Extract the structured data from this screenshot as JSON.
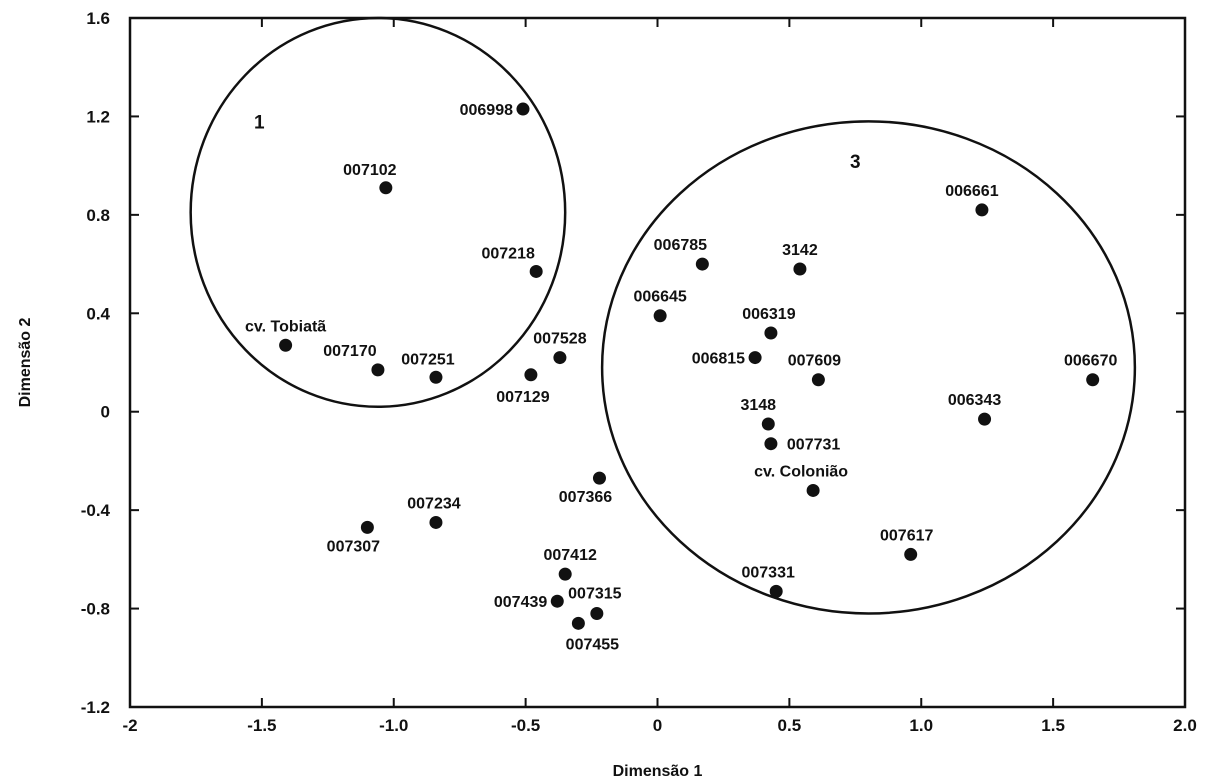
{
  "chart_data": {
    "type": "scatter",
    "xlabel": "Dimensão 1",
    "ylabel": "Dimensão 2",
    "xlim": [
      -2,
      2
    ],
    "ylim": [
      -1.2,
      1.6
    ],
    "x_ticks": [
      "-2",
      "-1.5",
      "-1.0",
      "-0.5",
      "0",
      "0.5",
      "1.0",
      "1.5",
      "2.0"
    ],
    "x_tick_values": [
      -2,
      -1.5,
      -1,
      -0.5,
      0,
      0.5,
      1,
      1.5,
      2
    ],
    "y_ticks": [
      "-1.2",
      "-0.8",
      "-0.4",
      "0",
      "0.4",
      "0.8",
      "1.2",
      "1.6"
    ],
    "y_tick_values": [
      -1.2,
      -0.8,
      -0.4,
      0,
      0.4,
      0.8,
      1.2,
      1.6
    ],
    "grid": false,
    "points": [
      {
        "label": "006998",
        "x": -0.51,
        "y": 1.23
      },
      {
        "label": "007102",
        "x": -1.03,
        "y": 0.91
      },
      {
        "label": "007218",
        "x": -0.46,
        "y": 0.57
      },
      {
        "label": "cv. Tobiatã",
        "x": -1.41,
        "y": 0.27
      },
      {
        "label": "007170",
        "x": -1.06,
        "y": 0.17
      },
      {
        "label": "007251",
        "x": -0.84,
        "y": 0.14
      },
      {
        "label": "007528",
        "x": -0.37,
        "y": 0.22
      },
      {
        "label": "007129",
        "x": -0.48,
        "y": 0.15
      },
      {
        "label": "006661",
        "x": 1.23,
        "y": 0.82
      },
      {
        "label": "006785",
        "x": 0.17,
        "y": 0.6
      },
      {
        "label": "3142",
        "x": 0.54,
        "y": 0.58
      },
      {
        "label": "006645",
        "x": 0.01,
        "y": 0.39
      },
      {
        "label": "006319",
        "x": 0.43,
        "y": 0.32
      },
      {
        "label": "006815",
        "x": 0.37,
        "y": 0.22
      },
      {
        "label": "007609",
        "x": 0.61,
        "y": 0.13
      },
      {
        "label": "006670",
        "x": 1.65,
        "y": 0.13
      },
      {
        "label": "3148",
        "x": 0.42,
        "y": -0.05
      },
      {
        "label": "006343",
        "x": 1.24,
        "y": -0.03
      },
      {
        "label": "007731",
        "x": 0.43,
        "y": -0.13
      },
      {
        "label": "cv. Colonião",
        "x": 0.59,
        "y": -0.32
      },
      {
        "label": "007366",
        "x": -0.22,
        "y": -0.27
      },
      {
        "label": "007234",
        "x": -0.84,
        "y": -0.45
      },
      {
        "label": "007307",
        "x": -1.1,
        "y": -0.47
      },
      {
        "label": "007412",
        "x": -0.35,
        "y": -0.66
      },
      {
        "label": "007617",
        "x": 0.96,
        "y": -0.58
      },
      {
        "label": "007331",
        "x": 0.45,
        "y": -0.73
      },
      {
        "label": "007439",
        "x": -0.38,
        "y": -0.77
      },
      {
        "label": "007315",
        "x": -0.23,
        "y": -0.82
      },
      {
        "label": "007455",
        "x": -0.3,
        "y": -0.86
      }
    ],
    "clusters": [
      {
        "label": "1",
        "center_x": -1.06,
        "center_y": 0.81,
        "radius_x": 0.71,
        "radius_y": 0.79,
        "label_x": -1.51,
        "label_y": 1.15
      },
      {
        "label": "3",
        "center_x": 0.8,
        "center_y": 0.18,
        "radius_x": 1.01,
        "radius_y": 1.0,
        "label_x": 0.75,
        "label_y": 0.99
      }
    ]
  }
}
